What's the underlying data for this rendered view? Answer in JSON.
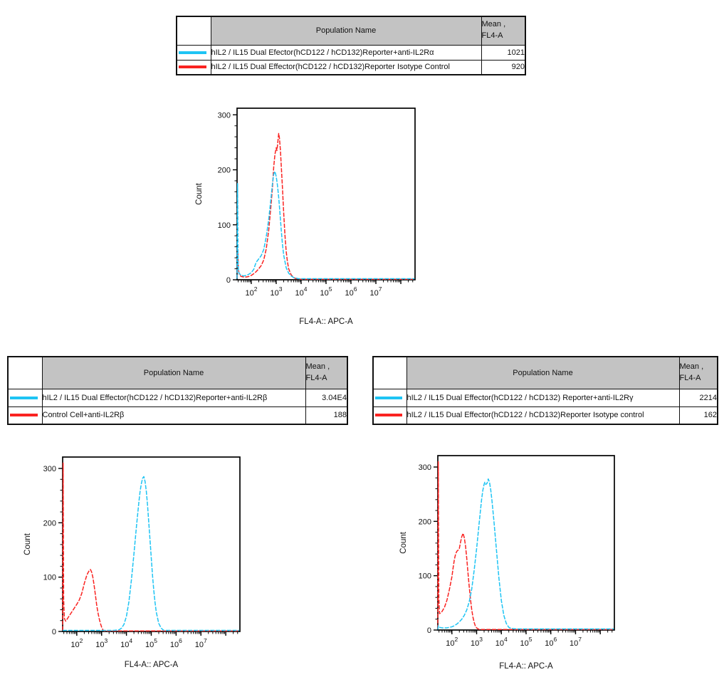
{
  "colors": {
    "cyan": "#1EC4F4",
    "red": "#FA2321",
    "header_bg": "#c3c3c3",
    "axis": "#000000",
    "background": "#ffffff"
  },
  "tables": [
    {
      "id": "alpha",
      "header": {
        "population": "Population Name",
        "mean_line1": "Mean ,",
        "mean_line2": "FL4-A"
      },
      "rows": [
        {
          "color": "cyan",
          "name": "hIL2 / IL15 Dual Efector(hCD122 / hCD132)Reporter+anti-IL2Rα",
          "mean": "1021"
        },
        {
          "color": "red",
          "name": "hIL2 / IL15 Dual Effector(hCD122 / hCD132)Reporter Isotype Control",
          "mean": "920"
        }
      ]
    },
    {
      "id": "beta",
      "header": {
        "population": "Population Name",
        "mean_line1": "Mean ,",
        "mean_line2": "FL4-A"
      },
      "rows": [
        {
          "color": "cyan",
          "name": "hIL2 / IL15 Dual Effector(hCD122 / hCD132)Reporter+anti-IL2Rβ",
          "mean": "3.04E4"
        },
        {
          "color": "red",
          "name": "Control Cell+anti-IL2Rβ",
          "mean": "188"
        }
      ]
    },
    {
      "id": "gamma",
      "header": {
        "population": "Population Name",
        "mean_line1": "Mean ,",
        "mean_line2": "FL4-A"
      },
      "rows": [
        {
          "color": "cyan",
          "name": "hIL2 / IL15 Dual Effector(hCD122 / hCD132) Reporter+anti-IL2Rγ",
          "mean": "2214"
        },
        {
          "color": "red",
          "name": "hIL2 / IL15 Dual Effector(hCD122 / hCD132)Reporter Isotype control",
          "mean": "162"
        }
      ]
    }
  ],
  "chart_data": [
    {
      "id": "alpha",
      "type": "line",
      "title": "",
      "xlabel": "FL4-A:: APC-A",
      "ylabel": "Count",
      "x_scale": "log10",
      "x_range_log10": [
        1.43,
        8.57
      ],
      "x_labeled_decades": [
        2,
        3,
        4,
        5,
        6,
        7
      ],
      "y_ticks": [
        0,
        100,
        200,
        300
      ],
      "y_minor_step": 20,
      "ylim": [
        0,
        312
      ],
      "grid": false,
      "legend_position": "none",
      "series": [
        {
          "name": "hIL2 / IL15 Dual Effector(hCD122 / hCD132)Reporter Isotype Control",
          "color_key": "red",
          "mean_fl4a": "920",
          "points": [
            [
              1.43,
              2
            ],
            [
              1.46,
              55
            ],
            [
              1.48,
              20
            ],
            [
              1.52,
              9
            ],
            [
              1.6,
              6
            ],
            [
              1.7,
              5
            ],
            [
              1.8,
              5
            ],
            [
              1.9,
              6
            ],
            [
              2.0,
              8
            ],
            [
              2.1,
              11
            ],
            [
              2.2,
              15
            ],
            [
              2.3,
              20
            ],
            [
              2.4,
              26
            ],
            [
              2.5,
              36
            ],
            [
              2.6,
              56
            ],
            [
              2.7,
              90
            ],
            [
              2.75,
              115
            ],
            [
              2.8,
              140
            ],
            [
              2.85,
              168
            ],
            [
              2.9,
              205
            ],
            [
              2.95,
              228
            ],
            [
              3.0,
              240
            ],
            [
              3.03,
              235
            ],
            [
              3.06,
              248
            ],
            [
              3.1,
              266
            ],
            [
              3.13,
              258
            ],
            [
              3.17,
              235
            ],
            [
              3.2,
              210
            ],
            [
              3.25,
              168
            ],
            [
              3.3,
              122
            ],
            [
              3.35,
              82
            ],
            [
              3.4,
              52
            ],
            [
              3.45,
              33
            ],
            [
              3.5,
              20
            ],
            [
              3.6,
              9
            ],
            [
              3.7,
              4
            ],
            [
              3.8,
              2
            ],
            [
              4.0,
              1
            ],
            [
              8.5,
              1
            ]
          ]
        },
        {
          "name": "hIL2 / IL15 Dual Efector(hCD122 / hCD132)Reporter+anti-IL2Rα",
          "color_key": "cyan",
          "mean_fl4a": "1021",
          "points": [
            [
              1.43,
              2
            ],
            [
              1.45,
              175
            ],
            [
              1.47,
              30
            ],
            [
              1.5,
              12
            ],
            [
              1.6,
              8
            ],
            [
              1.7,
              7
            ],
            [
              1.8,
              8
            ],
            [
              1.9,
              10
            ],
            [
              2.0,
              13
            ],
            [
              2.1,
              19
            ],
            [
              2.15,
              26
            ],
            [
              2.2,
              32
            ],
            [
              2.3,
              38
            ],
            [
              2.4,
              44
            ],
            [
              2.5,
              55
            ],
            [
              2.6,
              78
            ],
            [
              2.7,
              110
            ],
            [
              2.8,
              152
            ],
            [
              2.85,
              175
            ],
            [
              2.9,
              192
            ],
            [
              2.95,
              197
            ],
            [
              3.0,
              188
            ],
            [
              3.05,
              172
            ],
            [
              3.1,
              150
            ],
            [
              3.15,
              122
            ],
            [
              3.2,
              92
            ],
            [
              3.25,
              65
            ],
            [
              3.3,
              45
            ],
            [
              3.4,
              22
            ],
            [
              3.5,
              12
            ],
            [
              3.6,
              7
            ],
            [
              3.7,
              4
            ],
            [
              3.9,
              2
            ],
            [
              4.2,
              2
            ],
            [
              8.55,
              2
            ]
          ]
        }
      ]
    },
    {
      "id": "beta",
      "type": "line",
      "title": "",
      "xlabel": "FL4-A:: APC-A",
      "ylabel": "Count",
      "x_scale": "log10",
      "x_range_log10": [
        1.43,
        8.57
      ],
      "x_labeled_decades": [
        2,
        3,
        4,
        5,
        6,
        7
      ],
      "y_ticks": [
        0,
        100,
        200,
        300
      ],
      "y_minor_step": 20,
      "ylim": [
        0,
        321
      ],
      "grid": false,
      "legend_position": "none",
      "series": [
        {
          "name": "Control Cell+anti-IL2Rβ",
          "color_key": "red",
          "mean_fl4a": "188",
          "points": [
            [
              1.43,
              2
            ],
            [
              1.45,
              310
            ],
            [
              1.47,
              60
            ],
            [
              1.5,
              24
            ],
            [
              1.55,
              19
            ],
            [
              1.6,
              22
            ],
            [
              1.7,
              29
            ],
            [
              1.8,
              36
            ],
            [
              1.9,
              43
            ],
            [
              2.0,
              50
            ],
            [
              2.1,
              58
            ],
            [
              2.2,
              70
            ],
            [
              2.3,
              88
            ],
            [
              2.4,
              103
            ],
            [
              2.45,
              108
            ],
            [
              2.5,
              112
            ],
            [
              2.55,
              114
            ],
            [
              2.6,
              109
            ],
            [
              2.65,
              99
            ],
            [
              2.7,
              84
            ],
            [
              2.75,
              67
            ],
            [
              2.8,
              49
            ],
            [
              2.85,
              35
            ],
            [
              2.9,
              24
            ],
            [
              2.95,
              15
            ],
            [
              3.0,
              8
            ],
            [
              3.05,
              3
            ],
            [
              3.1,
              1
            ],
            [
              8.5,
              1
            ]
          ]
        },
        {
          "name": "hIL2 / IL15 Dual Effector(hCD122 / hCD132)Reporter+anti-IL2Rβ",
          "color_key": "cyan",
          "mean_fl4a": "3.04E4",
          "points": [
            [
              1.43,
              2
            ],
            [
              2.0,
              2
            ],
            [
              3.0,
              2
            ],
            [
              3.5,
              2
            ],
            [
              3.7,
              3
            ],
            [
              3.8,
              6
            ],
            [
              3.9,
              13
            ],
            [
              4.0,
              28
            ],
            [
              4.1,
              55
            ],
            [
              4.2,
              95
            ],
            [
              4.3,
              142
            ],
            [
              4.4,
              192
            ],
            [
              4.5,
              238
            ],
            [
              4.55,
              258
            ],
            [
              4.6,
              272
            ],
            [
              4.65,
              282
            ],
            [
              4.7,
              285
            ],
            [
              4.75,
              276
            ],
            [
              4.8,
              258
            ],
            [
              4.85,
              232
            ],
            [
              4.9,
              200
            ],
            [
              4.95,
              168
            ],
            [
              5.0,
              135
            ],
            [
              5.05,
              103
            ],
            [
              5.1,
              76
            ],
            [
              5.15,
              54
            ],
            [
              5.2,
              36
            ],
            [
              5.3,
              15
            ],
            [
              5.4,
              6
            ],
            [
              5.5,
              2
            ],
            [
              8.55,
              2
            ]
          ]
        }
      ]
    },
    {
      "id": "gamma",
      "type": "line",
      "title": "",
      "xlabel": "FL4-A:: APC-A",
      "ylabel": "Count",
      "x_scale": "log10",
      "x_range_log10": [
        1.43,
        8.57
      ],
      "x_labeled_decades": [
        2,
        3,
        4,
        5,
        6,
        7
      ],
      "y_ticks": [
        0,
        100,
        200,
        300
      ],
      "y_minor_step": 20,
      "ylim": [
        0,
        321
      ],
      "grid": false,
      "legend_position": "none",
      "series": [
        {
          "name": "hIL2 / IL15 Dual Effector(hCD122 / hCD132)Reporter Isotype control",
          "color_key": "red",
          "mean_fl4a": "162",
          "points": [
            [
              1.43,
              2
            ],
            [
              1.45,
              310
            ],
            [
              1.47,
              60
            ],
            [
              1.5,
              30
            ],
            [
              1.6,
              34
            ],
            [
              1.7,
              42
            ],
            [
              1.8,
              55
            ],
            [
              1.9,
              75
            ],
            [
              2.0,
              98
            ],
            [
              2.05,
              115
            ],
            [
              2.1,
              130
            ],
            [
              2.15,
              140
            ],
            [
              2.2,
              145
            ],
            [
              2.25,
              147
            ],
            [
              2.3,
              150
            ],
            [
              2.35,
              162
            ],
            [
              2.4,
              172
            ],
            [
              2.45,
              178
            ],
            [
              2.5,
              170
            ],
            [
              2.55,
              155
            ],
            [
              2.6,
              132
            ],
            [
              2.65,
              105
            ],
            [
              2.7,
              80
            ],
            [
              2.75,
              57
            ],
            [
              2.8,
              38
            ],
            [
              2.85,
              24
            ],
            [
              2.9,
              14
            ],
            [
              2.95,
              7
            ],
            [
              3.0,
              4
            ],
            [
              3.1,
              1
            ],
            [
              8.5,
              1
            ]
          ]
        },
        {
          "name": "hIL2 / IL15 Dual Effector(hCD122 / hCD132) Reporter+anti-IL2Rγ",
          "color_key": "cyan",
          "mean_fl4a": "2214",
          "points": [
            [
              1.43,
              1
            ],
            [
              1.45,
              8
            ],
            [
              1.5,
              5
            ],
            [
              1.6,
              4
            ],
            [
              1.8,
              4
            ],
            [
              2.0,
              6
            ],
            [
              2.1,
              8
            ],
            [
              2.2,
              11
            ],
            [
              2.3,
              15
            ],
            [
              2.4,
              20
            ],
            [
              2.5,
              27
            ],
            [
              2.6,
              37
            ],
            [
              2.7,
              52
            ],
            [
              2.8,
              75
            ],
            [
              2.9,
              110
            ],
            [
              3.0,
              150
            ],
            [
              3.1,
              196
            ],
            [
              3.15,
              218
            ],
            [
              3.2,
              240
            ],
            [
              3.25,
              257
            ],
            [
              3.3,
              268
            ],
            [
              3.33,
              272
            ],
            [
              3.37,
              268
            ],
            [
              3.42,
              270
            ],
            [
              3.47,
              278
            ],
            [
              3.52,
              272
            ],
            [
              3.57,
              258
            ],
            [
              3.62,
              238
            ],
            [
              3.7,
              200
            ],
            [
              3.8,
              148
            ],
            [
              3.9,
              96
            ],
            [
              4.0,
              54
            ],
            [
              4.1,
              27
            ],
            [
              4.2,
              12
            ],
            [
              4.3,
              5
            ],
            [
              4.4,
              3
            ],
            [
              4.6,
              2
            ],
            [
              8.55,
              2
            ]
          ]
        }
      ]
    }
  ]
}
